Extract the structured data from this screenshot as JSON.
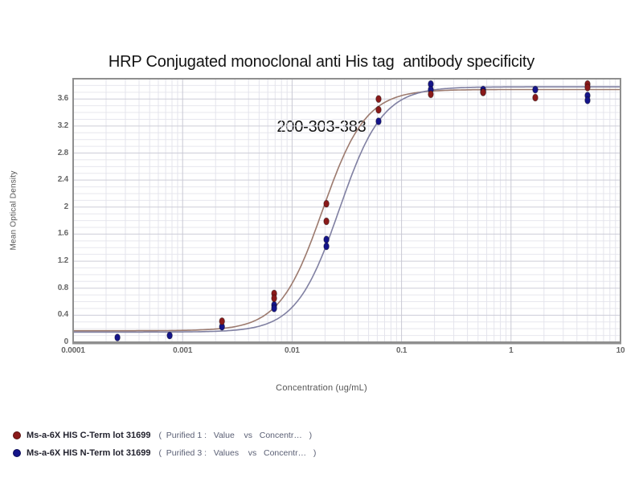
{
  "header": {
    "title_line1": "HRP Conjugated monoclonal anti His tag  antibody specificity",
    "title_line2": "200-303-383"
  },
  "chart_data": {
    "type": "scatter",
    "title": "HRP Conjugated monoclonal anti His tag antibody specificity 200-303-383",
    "xlabel": "Concentration (ug/mL)",
    "ylabel": "Mean Optical Density",
    "x_scale": "log",
    "xlim": [
      0.0001,
      10
    ],
    "ylim": [
      0,
      3.9
    ],
    "grid": true,
    "legend_position": "bottom-left",
    "x_tick_labels": [
      "0.0001",
      "0.001",
      "0.01",
      "0.1",
      "1",
      "10"
    ],
    "y_tick_values": [
      0,
      0.4,
      0.8,
      1.2,
      1.6,
      2,
      2.4,
      2.8,
      3.2,
      3.6
    ],
    "y_tick_labels": [
      "0",
      "0.4",
      "0.8",
      "1.2",
      "1.6",
      "2",
      "2.4",
      "2.8",
      "3.2",
      "3.6"
    ],
    "series": [
      {
        "name": "Ms-a-6X HIS C-Term lot 31699",
        "legend_detail": "(  Purified 1 :   Value    vs   Concentr…   )",
        "marker_color": "#8a1a1a",
        "curve_color": "#9c7a6e",
        "fit_4pl": {
          "bottom": 0.17,
          "top": 3.74,
          "ec50": 0.019,
          "hill": 2.2
        },
        "points": [
          [
            0.00229,
            0.31
          ],
          [
            0.00686,
            0.72
          ],
          [
            0.00686,
            0.65
          ],
          [
            0.0206,
            2.05
          ],
          [
            0.0206,
            1.79
          ],
          [
            0.0617,
            3.6
          ],
          [
            0.0617,
            3.44
          ],
          [
            0.185,
            3.67
          ],
          [
            0.556,
            3.7
          ],
          [
            1.667,
            3.62
          ],
          [
            5,
            3.82
          ],
          [
            5,
            3.77
          ]
        ]
      },
      {
        "name": "Ms-a-6X HIS N-Term lot 31699",
        "legend_detail": "(  Purified 3 :   Values    vs   Concentr…   )",
        "marker_color": "#15158a",
        "curve_color": "#8080a2",
        "fit_4pl": {
          "bottom": 0.15,
          "top": 3.78,
          "ec50": 0.027,
          "hill": 2.2
        },
        "points": [
          [
            0.000254,
            0.07
          ],
          [
            0.000762,
            0.1
          ],
          [
            0.00229,
            0.23
          ],
          [
            0.00686,
            0.55
          ],
          [
            0.00686,
            0.5
          ],
          [
            0.0206,
            1.52
          ],
          [
            0.0206,
            1.42
          ],
          [
            0.0617,
            3.27
          ],
          [
            0.185,
            3.82
          ],
          [
            0.185,
            3.74
          ],
          [
            0.556,
            3.74
          ],
          [
            0.556,
            3.7
          ],
          [
            1.667,
            3.74
          ],
          [
            5,
            3.65
          ],
          [
            5,
            3.58
          ]
        ]
      }
    ]
  }
}
